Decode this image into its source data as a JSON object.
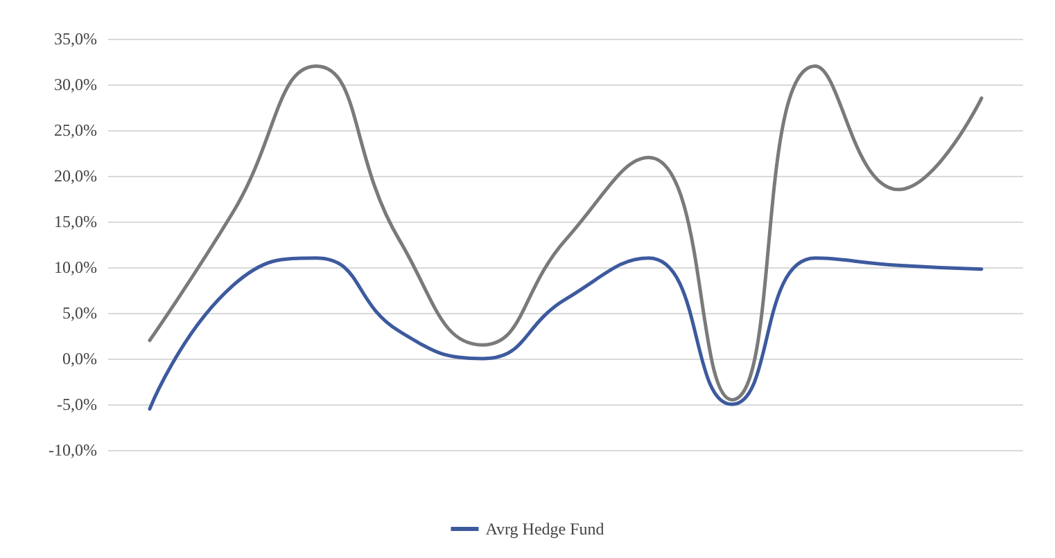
{
  "chart_data": {
    "type": "line",
    "categories": [
      null,
      null,
      null,
      null,
      null,
      null,
      null,
      null,
      null,
      null,
      null
    ],
    "series": [
      {
        "name": "Avrg Hedge Fund",
        "color": "#3d5a9e",
        "values": [
          -5.5,
          8,
          11,
          3,
          0,
          6.5,
          11,
          -5,
          11,
          10.2,
          9.8
        ]
      },
      {
        "color": "#7a7a7a",
        "values": [
          2,
          16,
          32,
          13,
          1.5,
          13,
          22,
          -4.5,
          32,
          18.5,
          28.5
        ]
      }
    ],
    "ylim": [
      -10,
      35
    ],
    "yticks": [
      {
        "value": -10,
        "label": "-10,0%"
      },
      {
        "value": -5,
        "label": "-5,0%"
      },
      {
        "value": 0,
        "label": "0,0%"
      },
      {
        "value": 5,
        "label": "5,0%"
      },
      {
        "value": 10,
        "label": "10,0%"
      },
      {
        "value": 15,
        "label": "15,0%"
      },
      {
        "value": 20,
        "label": "20,0%"
      },
      {
        "value": 25,
        "label": "25,0%"
      },
      {
        "value": 30,
        "label": "30,0%"
      },
      {
        "value": 35,
        "label": "35,0%"
      }
    ],
    "grid": "y",
    "legend": "bottom",
    "marker": "none",
    "line_style": "solid"
  }
}
